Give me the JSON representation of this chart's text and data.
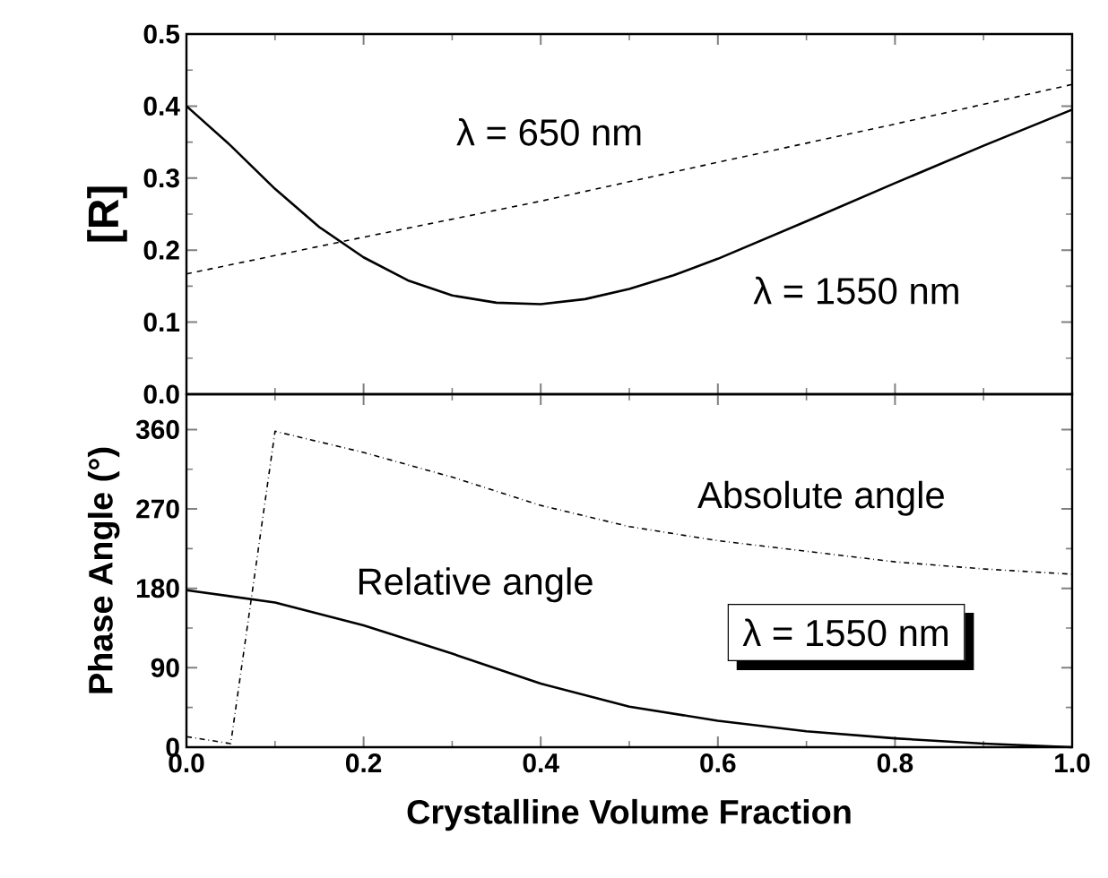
{
  "chart_data": [
    {
      "type": "line",
      "ylabel": "[R]",
      "xlim": [
        0,
        1
      ],
      "xticks": [
        {
          "value": 0,
          "label": null
        },
        {
          "value": 0.2,
          "label": null
        },
        {
          "value": 0.4,
          "label": null
        },
        {
          "value": 0.6,
          "label": null
        },
        {
          "value": 0.8,
          "label": null
        },
        {
          "value": 1,
          "label": null
        }
      ],
      "ylim": [
        0,
        0.5
      ],
      "yticks": [
        {
          "value": 0,
          "label": "0.0"
        },
        0.1,
        0.2,
        0.3,
        0.4,
        0.5
      ],
      "tick_labels": "y",
      "grid": false,
      "series": [
        {
          "color": "#000000",
          "line_style": "solid",
          "x": [
            0,
            0.05,
            0.1,
            0.15,
            0.2,
            0.25,
            0.3,
            0.35,
            0.4,
            0.45,
            0.5,
            0.55,
            0.6,
            0.7,
            0.8,
            0.9,
            1.0
          ],
          "values": [
            0.4,
            0.345,
            0.285,
            0.232,
            0.19,
            0.158,
            0.137,
            0.127,
            0.125,
            0.132,
            0.146,
            0.165,
            0.188,
            0.24,
            0.293,
            0.345,
            0.395
          ]
        },
        {
          "color": "#000000",
          "line_style": "dashed",
          "x": [
            0,
            0.2,
            0.4,
            0.6,
            0.8,
            1.0
          ],
          "values": [
            0.167,
            0.218,
            0.268,
            0.322,
            0.375,
            0.43
          ]
        }
      ],
      "annotations": [
        "λ = 650 nm",
        "λ = 1550 nm"
      ]
    },
    {
      "type": "line",
      "xlabel": "Crystalline Volume Fraction",
      "ylabel": "Phase Angle (°)",
      "xlim": [
        0,
        1
      ],
      "xticks": [
        {
          "value": 0,
          "label": "0.0"
        },
        0.2,
        0.4,
        0.6,
        0.8,
        {
          "value": 1,
          "label": "1.0"
        }
      ],
      "ylim": [
        0,
        400
      ],
      "yticks": [
        0,
        90,
        180,
        270,
        360
      ],
      "grid": false,
      "series": [
        {
          "color": "#000000",
          "line_style": "solid",
          "x": [
            0,
            0.1,
            0.2,
            0.3,
            0.4,
            0.5,
            0.6,
            0.7,
            0.8,
            0.9,
            1.0
          ],
          "values": [
            178,
            164,
            138,
            106,
            72,
            46,
            30,
            18,
            10,
            4,
            0
          ]
        },
        {
          "color": "#000000",
          "line_style": "dashdot",
          "x": [
            0,
            0.05,
            0.1,
            0.2,
            0.3,
            0.4,
            0.5,
            0.6,
            0.7,
            0.8,
            0.9,
            1.0
          ],
          "values": [
            12,
            4,
            358,
            334,
            306,
            274,
            250,
            234,
            222,
            210,
            202,
            196
          ]
        }
      ],
      "annotations": [
        "Absolute angle",
        "Relative angle",
        "λ = 1550 nm"
      ]
    }
  ]
}
